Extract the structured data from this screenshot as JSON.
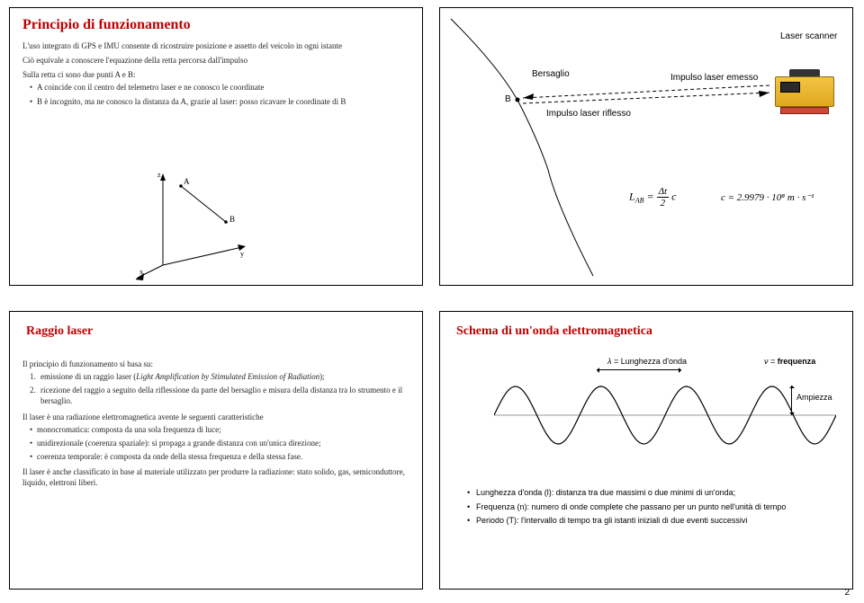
{
  "tl": {
    "title": "Principio di funzionamento",
    "p1": "L'uso integrato di GPS e IMU consente di ricostruire posizione e assetto del veicolo in ogni istante",
    "p2": "Ciò equivale a conoscere l'equazione della retta percorsa dall'impulso",
    "p3": "Sulla retta ci sono due punti A e B:",
    "b1": "A coincide con il centro del telemetro laser e ne conosco le coordinate",
    "b2": "B è incognito, ma ne conosco la distanza da A, grazie al laser: posso ricavare le coordinate di B",
    "axis": {
      "x": "x",
      "y": "y",
      "z": "z",
      "A": "A",
      "B": "B"
    }
  },
  "tr": {
    "bersaglio": "Bersaglio",
    "B": "B",
    "emesso": "Impulso laser emesso",
    "riflesso": "Impulso laser riflesso",
    "scanner": "Laser scanner",
    "formula_L": "L",
    "formula_AB": "AB",
    "formula_eq": " = ",
    "formula_dt": "Δt",
    "formula_2": "2",
    "formula_c": "c",
    "c_formula": "c = 2.9979 · 10⁸ m · s⁻¹",
    "terrain_color": "#000000",
    "laser_dash": "4 3"
  },
  "bl": {
    "title": "Raggio laser",
    "intro": "Il principio di funzionamento si basa su:",
    "item1_pre": "emissione di un raggio laser (",
    "item1_it": "Light Amplification by Stimulated Emission of Radiation",
    "item1_post": ");",
    "item2": "ricezione del raggio a seguito della riflessione da parte del bersaglio e misura della distanza tra lo strumento e il bersaglio.",
    "p2": "Il laser è una radiazione elettromagnetica avente le seguenti caratteristiche",
    "b1": "monocromatica: composta da una sola frequenza di luce;",
    "b2": "unidirezionale (coerenza spaziale): si propaga a grande distanza con un'unica direzione;",
    "b3": "coerenza temporale: è composta da onde della stessa frequenza e della stessa fase.",
    "p3": "Il laser è anche classificato in base al materiale utilizzato per produrre la radiazione: stato solido, gas, semiconduttore, liquido, elettroni liberi."
  },
  "br": {
    "title": "Schema di un'onda elettromagnetica",
    "lambda_pre": "λ",
    "lambda_txt": " = Lunghezza d'onda",
    "nu_pre": "ν",
    "nu_txt": " = ",
    "freq_bold": "frequenza",
    "amp": "Ampiezza",
    "b1": "Lunghezza d'onda (l): distanza tra due massimi o due minimi di un'onda;",
    "b2": "Frequenza (n): numero di onde complete che passano per un punto nell'unità di tempo",
    "b3": "Periodo (T): l'intervallo di tempo tra gli istanti iniziali di due eventi successivi",
    "wave": {
      "cycles": 4,
      "amplitude": 32,
      "stroke": "#000000",
      "axis_color": "#999999"
    }
  },
  "page_number": "2"
}
